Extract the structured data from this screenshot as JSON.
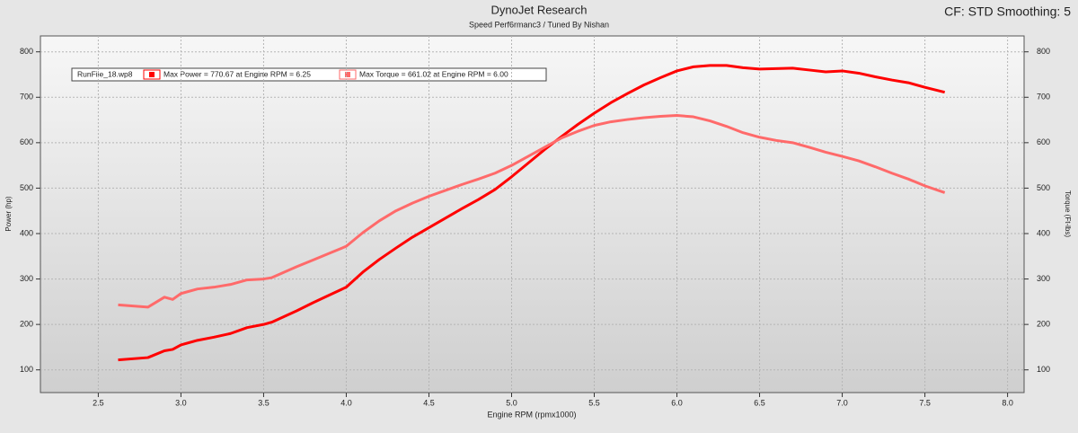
{
  "chart_data": {
    "type": "line",
    "title": "DynoJet Research",
    "subtitle": "Speed Perf6rmanc3 / Tuned By Nishan",
    "corner_note": "CF: STD Smoothing: 5",
    "x_label": "Engine RPM (rpmx1000)",
    "y_label": "Power (hp)",
    "y2_label": "Torque (Ft-lbs)",
    "legend_title": "RunFile_18.wp8",
    "grid": true,
    "x": [
      2.62,
      2.8,
      2.9,
      2.95,
      3.0,
      3.1,
      3.2,
      3.3,
      3.4,
      3.5,
      3.55,
      3.7,
      3.8,
      3.9,
      4.0,
      4.1,
      4.2,
      4.3,
      4.4,
      4.5,
      4.6,
      4.7,
      4.8,
      4.9,
      5.0,
      5.1,
      5.2,
      5.3,
      5.4,
      5.5,
      5.6,
      5.7,
      5.8,
      5.9,
      6.0,
      6.1,
      6.2,
      6.3,
      6.4,
      6.5,
      6.6,
      6.7,
      6.8,
      6.9,
      7.0,
      7.1,
      7.2,
      7.3,
      7.4,
      7.5,
      7.62
    ],
    "series": [
      {
        "name": "Max Power = 770.67 at Engine RPM = 6.25",
        "color": "#ff0000",
        "axis": "y",
        "values": [
          122,
          127,
          142,
          145,
          155,
          165,
          172,
          180,
          193,
          200,
          205,
          230,
          248,
          265,
          282,
          315,
          343,
          368,
          392,
          413,
          434,
          455,
          475,
          497,
          525,
          555,
          585,
          613,
          640,
          665,
          688,
          708,
          727,
          743,
          758,
          767,
          770,
          770,
          765,
          762,
          763,
          764,
          760,
          756,
          758,
          753,
          745,
          738,
          732,
          722,
          711
        ]
      },
      {
        "name": "Max Torque = 661.02 at Engine RPM = 6.00",
        "color": "#ff6a6a",
        "axis": "y2",
        "values": [
          243,
          238,
          260,
          255,
          268,
          278,
          282,
          288,
          298,
          300,
          303,
          327,
          342,
          357,
          372,
          402,
          428,
          450,
          467,
          482,
          495,
          508,
          520,
          533,
          550,
          570,
          590,
          610,
          625,
          638,
          646,
          651,
          655,
          658,
          660,
          657,
          648,
          636,
          622,
          612,
          605,
          600,
          590,
          579,
          570,
          560,
          547,
          533,
          520,
          505,
          490
        ]
      }
    ],
    "xlim": [
      2.15,
      8.1
    ],
    "xticks": [
      2.5,
      {
        "value": 3,
        "label": "3.0"
      },
      3.5,
      {
        "value": 4,
        "label": "4.0"
      },
      4.5,
      {
        "value": 5,
        "label": "5.0"
      },
      5.5,
      {
        "value": 6,
        "label": "6.0"
      },
      6.5,
      {
        "value": 7,
        "label": "7.0"
      },
      7.5,
      {
        "value": 8,
        "label": "8.0"
      }
    ],
    "ylim": [
      50,
      835
    ],
    "yticks": [
      100,
      200,
      300,
      400,
      500,
      600,
      700,
      800
    ],
    "y2lim": [
      50,
      835
    ],
    "y2ticks": [
      100,
      200,
      300,
      400,
      500,
      600,
      700,
      800
    ]
  }
}
